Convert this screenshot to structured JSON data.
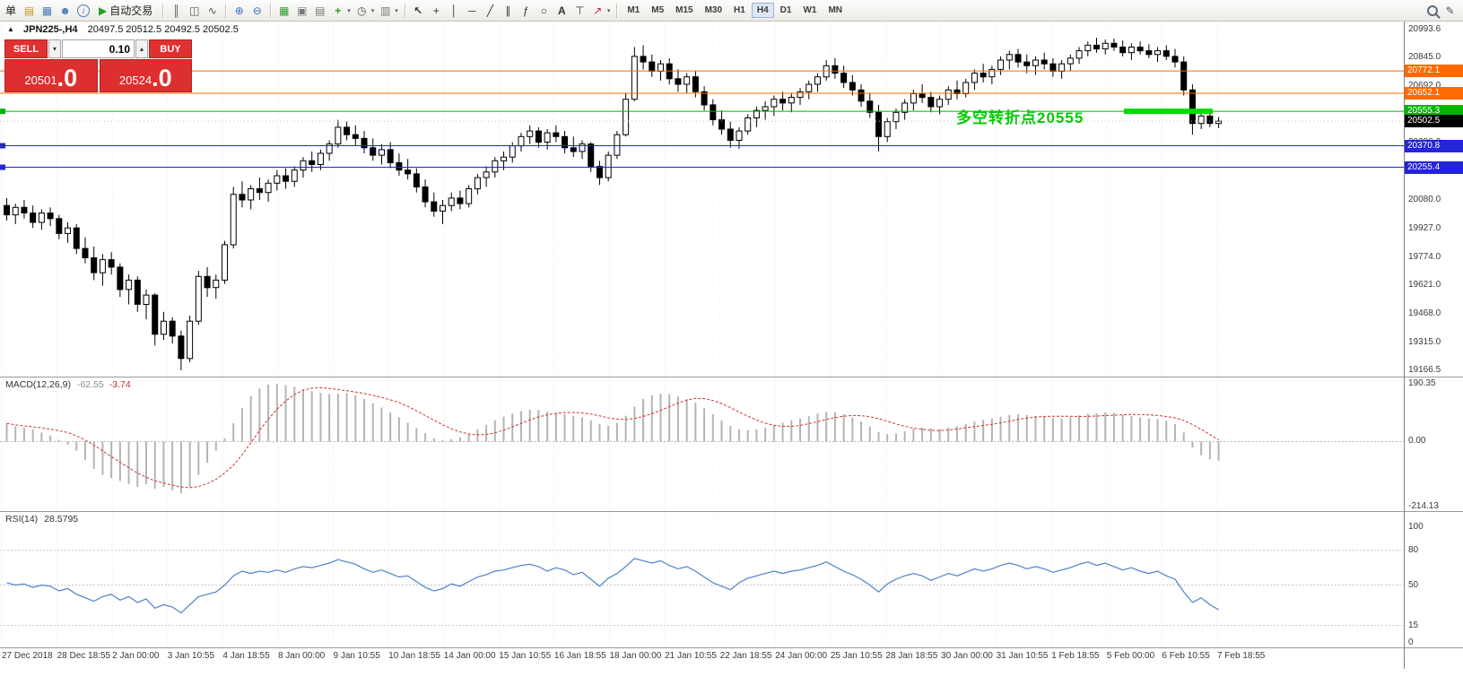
{
  "toolbar": {
    "order_label": "单",
    "autotrade_label": "自动交易",
    "left_icons": [
      "new-order-icon",
      "charts-icon",
      "profile-icon",
      "info-icon"
    ],
    "chart_type_icons": [
      "bars-chart-icon",
      "candles-chart-icon",
      "line-chart-icon"
    ],
    "zoom_icons": [
      "zoom-in-icon",
      "zoom-out-icon"
    ],
    "window_icons": [
      "tile-windows-icon",
      "cascade-windows-icon",
      "arrange-windows-icon"
    ],
    "tool_icons": [
      "indicators-icon",
      "periods-icon",
      "templates-icon"
    ],
    "draw_icons": [
      "cursor-icon",
      "crosshair-icon",
      "vertical-line-icon",
      "horizontal-line-icon",
      "trendline-icon",
      "channel-icon",
      "fibonacci-icon",
      "shapes-icon",
      "text-icon",
      "label-icon",
      "arrows-icon"
    ],
    "timeframes": [
      "M1",
      "M5",
      "M15",
      "M30",
      "H1",
      "H4",
      "D1",
      "W1",
      "MN"
    ],
    "active_timeframe": "H4",
    "right_icons": [
      "search-icon",
      "edit-icon"
    ],
    "caret_glyph": "▾"
  },
  "chart": {
    "collapse_glyph": "▲",
    "symbol_info": "JPN225-,H4",
    "ohlc": "20497.5 20512.5 20492.5 20502.5",
    "annotation": {
      "text": "多空转折点20555",
      "color": "#00cc00",
      "segment_color": "#00dc00",
      "level": 20555.3
    },
    "levels": [
      {
        "price": "20772.1",
        "value": 20772.1,
        "color": "#ff6a00",
        "type": "hline",
        "handles": false
      },
      {
        "price": "20652.1",
        "value": 20652.1,
        "color": "#ff6a00",
        "type": "hline",
        "handles": false
      },
      {
        "price": "20555.3",
        "value": 20555.3,
        "color": "#00b400",
        "type": "hline",
        "handles": true
      },
      {
        "price": "20502.5",
        "value": 20502.5,
        "color": "#000000",
        "type": "bid",
        "handles": false
      },
      {
        "price": "20370.8",
        "value": 20370.8,
        "color": "#2424d8",
        "type": "hline",
        "handles": true
      },
      {
        "price": "20255.4",
        "value": 20255.4,
        "color": "#2424d8",
        "type": "hline",
        "handles": true
      }
    ],
    "y_axis": {
      "max": 20993.6,
      "min": 19166.5,
      "ticks": [
        20993.6,
        20845.0,
        20692.0,
        20539.0,
        20386.0,
        20233.0,
        20080.0,
        19927.0,
        19774.0,
        19621.0,
        19468.0,
        19315.0,
        19166.5
      ]
    },
    "x_axis": [
      "27 Dec 2018",
      "28 Dec 18:55",
      "2 Jan 00:00",
      "3 Jan 10:55",
      "4 Jan 18:55",
      "8 Jan 00:00",
      "9 Jan 10:55",
      "10 Jan 18:55",
      "14 Jan 00:00",
      "15 Jan 10:55",
      "16 Jan 18:55",
      "18 Jan 00:00",
      "21 Jan 10:55",
      "22 Jan 18:55",
      "24 Jan 00:00",
      "25 Jan 10:55",
      "28 Jan 18:55",
      "30 Jan 00:00",
      "31 Jan 10:55",
      "1 Feb 18:55",
      "5 Feb 00:00",
      "6 Feb 10:55",
      "7 Feb 18:55"
    ]
  },
  "trade_panel": {
    "sell_label": "SELL",
    "buy_label": "BUY",
    "volume": "0.10",
    "step_down_glyph": "▾",
    "step_up_glyph": "▴",
    "sell_price_small": "20501",
    "sell_price_big": ".0",
    "buy_price_small": "20524",
    "buy_price_big": ".0"
  },
  "macd": {
    "label": "MACD(12,26,9)",
    "value_main": "-62.55",
    "value_signal": "-3.74",
    "axis_labels": [
      "190.35",
      "0.00",
      "-214.13"
    ],
    "axis_values": [
      190.35,
      0,
      -214.13
    ],
    "max": 190.35,
    "min": -214.13
  },
  "rsi": {
    "label": "RSI(14)",
    "value": "28.5795",
    "axis_labels": [
      "100",
      "80",
      "50",
      "15",
      "0"
    ],
    "axis_values": [
      100,
      80,
      50,
      15,
      0
    ],
    "levels": [
      80,
      50,
      15
    ]
  },
  "chart_data": {
    "type": "candlestick",
    "symbol": "JPN225-",
    "timeframe": "H4",
    "candles": [
      [
        20050,
        20090,
        19970,
        20000
      ],
      [
        20000,
        20060,
        19950,
        20040
      ],
      [
        20040,
        20080,
        19980,
        20010
      ],
      [
        20010,
        20050,
        19930,
        19960
      ],
      [
        19960,
        20030,
        19920,
        20010
      ],
      [
        20010,
        20040,
        19940,
        19980
      ],
      [
        19980,
        20000,
        19870,
        19900
      ],
      [
        19900,
        19960,
        19850,
        19930
      ],
      [
        19930,
        19950,
        19790,
        19820
      ],
      [
        19820,
        19880,
        19740,
        19770
      ],
      [
        19770,
        19830,
        19650,
        19690
      ],
      [
        19690,
        19790,
        19620,
        19760
      ],
      [
        19760,
        19800,
        19680,
        19720
      ],
      [
        19720,
        19740,
        19560,
        19600
      ],
      [
        19600,
        19680,
        19520,
        19650
      ],
      [
        19650,
        19670,
        19480,
        19520
      ],
      [
        19520,
        19600,
        19440,
        19570
      ],
      [
        19570,
        19580,
        19300,
        19360
      ],
      [
        19360,
        19480,
        19330,
        19430
      ],
      [
        19430,
        19450,
        19310,
        19350
      ],
      [
        19350,
        19380,
        19166.5,
        19230
      ],
      [
        19230,
        19460,
        19210,
        19430
      ],
      [
        19430,
        19700,
        19410,
        19670
      ],
      [
        19670,
        19720,
        19560,
        19610
      ],
      [
        19610,
        19680,
        19550,
        19650
      ],
      [
        19650,
        19860,
        19630,
        19840
      ],
      [
        19840,
        20150,
        19820,
        20110
      ],
      [
        20110,
        20180,
        20040,
        20080
      ],
      [
        20080,
        20160,
        20030,
        20140
      ],
      [
        20140,
        20200,
        20080,
        20120
      ],
      [
        20120,
        20190,
        20070,
        20170
      ],
      [
        20170,
        20240,
        20130,
        20210
      ],
      [
        20210,
        20250,
        20140,
        20180
      ],
      [
        20180,
        20260,
        20150,
        20240
      ],
      [
        20240,
        20310,
        20200,
        20290
      ],
      [
        20290,
        20340,
        20230,
        20270
      ],
      [
        20270,
        20350,
        20240,
        20330
      ],
      [
        20330,
        20400,
        20290,
        20380
      ],
      [
        20380,
        20510,
        20360,
        20470
      ],
      [
        20470,
        20500,
        20400,
        20430
      ],
      [
        20430,
        20480,
        20370,
        20410
      ],
      [
        20410,
        20450,
        20330,
        20360
      ],
      [
        20360,
        20410,
        20290,
        20320
      ],
      [
        20320,
        20380,
        20270,
        20350
      ],
      [
        20350,
        20390,
        20250,
        20280
      ],
      [
        20280,
        20330,
        20210,
        20240
      ],
      [
        20240,
        20300,
        20190,
        20220
      ],
      [
        20220,
        20250,
        20120,
        20150
      ],
      [
        20150,
        20190,
        20040,
        20070
      ],
      [
        20070,
        20120,
        19990,
        20020
      ],
      [
        20020,
        20080,
        19950,
        20050
      ],
      [
        20050,
        20120,
        20020,
        20090
      ],
      [
        20090,
        20130,
        20030,
        20060
      ],
      [
        20060,
        20160,
        20040,
        20140
      ],
      [
        20140,
        20220,
        20110,
        20200
      ],
      [
        20200,
        20260,
        20150,
        20230
      ],
      [
        20230,
        20310,
        20200,
        20290
      ],
      [
        20290,
        20340,
        20240,
        20310
      ],
      [
        20310,
        20390,
        20280,
        20370
      ],
      [
        20370,
        20440,
        20340,
        20420
      ],
      [
        20420,
        20480,
        20380,
        20450
      ],
      [
        20450,
        20470,
        20360,
        20390
      ],
      [
        20390,
        20460,
        20350,
        20440
      ],
      [
        20440,
        20480,
        20390,
        20420
      ],
      [
        20420,
        20450,
        20330,
        20360
      ],
      [
        20360,
        20420,
        20310,
        20340
      ],
      [
        20340,
        20400,
        20300,
        20380
      ],
      [
        20380,
        20390,
        20230,
        20260
      ],
      [
        20260,
        20290,
        20160,
        20200
      ],
      [
        20200,
        20340,
        20180,
        20320
      ],
      [
        20320,
        20450,
        20300,
        20430
      ],
      [
        20430,
        20650,
        20420,
        20620
      ],
      [
        20620,
        20900,
        20610,
        20850
      ],
      [
        20850,
        20910,
        20780,
        20820
      ],
      [
        20820,
        20860,
        20740,
        20770
      ],
      [
        20770,
        20830,
        20720,
        20810
      ],
      [
        20810,
        20840,
        20700,
        20730
      ],
      [
        20730,
        20780,
        20660,
        20700
      ],
      [
        20700,
        20760,
        20650,
        20740
      ],
      [
        20740,
        20770,
        20630,
        20660
      ],
      [
        20660,
        20690,
        20560,
        20590
      ],
      [
        20590,
        20620,
        20480,
        20510
      ],
      [
        20510,
        20560,
        20430,
        20460
      ],
      [
        20460,
        20500,
        20360,
        20400
      ],
      [
        20400,
        20470,
        20355,
        20450
      ],
      [
        20450,
        20540,
        20430,
        20520
      ],
      [
        20520,
        20580,
        20470,
        20560
      ],
      [
        20560,
        20610,
        20510,
        20580
      ],
      [
        20580,
        20640,
        20530,
        20620
      ],
      [
        20620,
        20660,
        20560,
        20600
      ],
      [
        20600,
        20650,
        20550,
        20630
      ],
      [
        20630,
        20680,
        20590,
        20660
      ],
      [
        20660,
        20720,
        20620,
        20700
      ],
      [
        20700,
        20760,
        20660,
        20740
      ],
      [
        20740,
        20830,
        20720,
        20800
      ],
      [
        20800,
        20840,
        20730,
        20760
      ],
      [
        20760,
        20800,
        20680,
        20710
      ],
      [
        20710,
        20750,
        20640,
        20670
      ],
      [
        20670,
        20700,
        20580,
        20610
      ],
      [
        20610,
        20650,
        20520,
        20550
      ],
      [
        20550,
        20590,
        20340,
        20420
      ],
      [
        20420,
        20520,
        20390,
        20500
      ],
      [
        20500,
        20570,
        20460,
        20550
      ],
      [
        20550,
        20620,
        20510,
        20600
      ],
      [
        20600,
        20670,
        20560,
        20650
      ],
      [
        20650,
        20700,
        20600,
        20630
      ],
      [
        20630,
        20660,
        20550,
        20580
      ],
      [
        20580,
        20640,
        20540,
        20620
      ],
      [
        20620,
        20690,
        20590,
        20670
      ],
      [
        20670,
        20720,
        20620,
        20650
      ],
      [
        20650,
        20730,
        20630,
        20710
      ],
      [
        20710,
        20780,
        20670,
        20760
      ],
      [
        20760,
        20810,
        20710,
        20740
      ],
      [
        20740,
        20800,
        20700,
        20780
      ],
      [
        20780,
        20850,
        20750,
        20830
      ],
      [
        20830,
        20880,
        20780,
        20860
      ],
      [
        20860,
        20890,
        20790,
        20820
      ],
      [
        20820,
        20860,
        20760,
        20800
      ],
      [
        20800,
        20850,
        20750,
        20830
      ],
      [
        20830,
        20870,
        20780,
        20810
      ],
      [
        20810,
        20840,
        20740,
        20770
      ],
      [
        20770,
        20830,
        20730,
        20810
      ],
      [
        20810,
        20860,
        20770,
        20840
      ],
      [
        20840,
        20900,
        20810,
        20880
      ],
      [
        20880,
        20930,
        20850,
        20910
      ],
      [
        20910,
        20950,
        20870,
        20890
      ],
      [
        20890,
        20940,
        20860,
        20920
      ],
      [
        20920,
        20945,
        20880,
        20900
      ],
      [
        20900,
        20935,
        20850,
        20870
      ],
      [
        20870,
        20920,
        20830,
        20900
      ],
      [
        20900,
        20930,
        20860,
        20880
      ],
      [
        20880,
        20915,
        20840,
        20860
      ],
      [
        20860,
        20900,
        20820,
        20880
      ],
      [
        20880,
        20910,
        20830,
        20850
      ],
      [
        20850,
        20890,
        20790,
        20820
      ],
      [
        20820,
        20850,
        20640,
        20670
      ],
      [
        20670,
        20700,
        20430,
        20490
      ],
      [
        20490,
        20560,
        20460,
        20530
      ],
      [
        20530,
        20545,
        20470,
        20490
      ],
      [
        20490,
        20525,
        20465,
        20502.5
      ]
    ],
    "macd_hist": [
      60,
      50,
      45,
      40,
      30,
      20,
      5,
      -10,
      -30,
      -60,
      -90,
      -110,
      -120,
      -130,
      -140,
      -150,
      -140,
      -155,
      -150,
      -160,
      -170,
      -150,
      -110,
      -70,
      -30,
      10,
      60,
      110,
      150,
      175,
      188,
      190,
      186,
      180,
      173,
      166,
      160,
      156,
      158,
      160,
      152,
      140,
      126,
      112,
      96,
      80,
      62,
      45,
      28,
      12,
      5,
      8,
      14,
      25,
      40,
      55,
      70,
      82,
      92,
      100,
      105,
      104,
      98,
      94,
      90,
      84,
      80,
      70,
      58,
      52,
      62,
      85,
      115,
      140,
      152,
      158,
      156,
      148,
      140,
      128,
      110,
      90,
      70,
      52,
      40,
      38,
      40,
      46,
      54,
      62,
      70,
      76,
      84,
      92,
      98,
      96,
      90,
      80,
      66,
      50,
      32,
      24,
      26,
      34,
      42,
      46,
      44,
      42,
      46,
      50,
      58,
      66,
      72,
      76,
      82,
      88,
      90,
      88,
      84,
      82,
      78,
      76,
      80,
      86,
      92,
      94,
      96,
      94,
      88,
      84,
      80,
      76,
      74,
      68,
      58,
      30,
      -20,
      -45,
      -58,
      -62.55
    ],
    "rsi": [
      52,
      50,
      51,
      48,
      50,
      49,
      45,
      47,
      42,
      39,
      36,
      40,
      42,
      37,
      40,
      35,
      38,
      30,
      33,
      31,
      26,
      33,
      40,
      42,
      44,
      50,
      58,
      62,
      60,
      62,
      61,
      63,
      61,
      64,
      66,
      65,
      67,
      69,
      72,
      70,
      68,
      64,
      61,
      63,
      60,
      57,
      58,
      53,
      48,
      45,
      47,
      51,
      49,
      53,
      57,
      59,
      62,
      63,
      65,
      67,
      68,
      66,
      62,
      65,
      63,
      59,
      61,
      55,
      49,
      56,
      60,
      66,
      73,
      71,
      69,
      71,
      67,
      64,
      66,
      62,
      57,
      52,
      49,
      46,
      52,
      56,
      58,
      60,
      62,
      60,
      62,
      63,
      65,
      67,
      70,
      66,
      62,
      59,
      55,
      50,
      44,
      51,
      55,
      58,
      60,
      58,
      54,
      57,
      60,
      58,
      61,
      64,
      62,
      64,
      67,
      69,
      67,
      64,
      66,
      64,
      61,
      63,
      65,
      68,
      70,
      67,
      69,
      66,
      63,
      65,
      62,
      60,
      62,
      58,
      55,
      44,
      35,
      39,
      33,
      28.5795
    ]
  }
}
